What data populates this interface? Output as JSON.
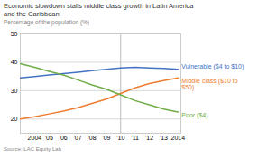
{
  "chart_data": {
    "type": "line",
    "title": "Economic slowdown stalls middle class growth in Latin America\nand the Caribbean",
    "subtitle": "Percentage of the population (%)",
    "source": "Source: LAC Equity Lab",
    "x": [
      2003,
      2004,
      2005,
      2006,
      2007,
      2008,
      2009,
      2010,
      2011,
      2012,
      2013,
      2014
    ],
    "series": [
      {
        "name": "Vulnerable ($4 to $10)",
        "color": "#4472C4",
        "values": [
          34.5,
          35.0,
          35.5,
          36.0,
          36.5,
          37.0,
          37.5,
          38.0,
          38.2,
          38.0,
          37.8,
          37.5
        ]
      },
      {
        "name": "Middle class ($10 to\n$50)",
        "color": "#ED7D31",
        "values": [
          20.0,
          20.8,
          21.8,
          22.8,
          24.0,
          25.5,
          27.0,
          29.0,
          31.0,
          32.5,
          33.5,
          34.5
        ]
      },
      {
        "name": "Poor ($4)",
        "color": "#70AD47",
        "values": [
          39.5,
          38.2,
          36.8,
          35.5,
          33.8,
          32.0,
          30.5,
          28.5,
          26.5,
          25.0,
          23.5,
          22.5
        ]
      }
    ],
    "vlines": [
      2010
    ],
    "xlim": [
      2003,
      2014.2
    ],
    "xticks": [
      2004,
      {
        "value": 2005,
        "label": "'05"
      },
      {
        "value": 2006,
        "label": "'06"
      },
      {
        "value": 2007,
        "label": "'07"
      },
      {
        "value": 2008,
        "label": "'08"
      },
      {
        "value": 2009,
        "label": "'09"
      },
      {
        "value": 2010,
        "label": "'10"
      },
      {
        "value": 2011,
        "label": "'11"
      },
      {
        "value": 2012,
        "label": "'12"
      },
      {
        "value": 2013,
        "label": "'13"
      },
      2014
    ],
    "ylim": [
      15,
      50
    ],
    "yticks": [
      20,
      30,
      40,
      50
    ],
    "grid": "y"
  }
}
